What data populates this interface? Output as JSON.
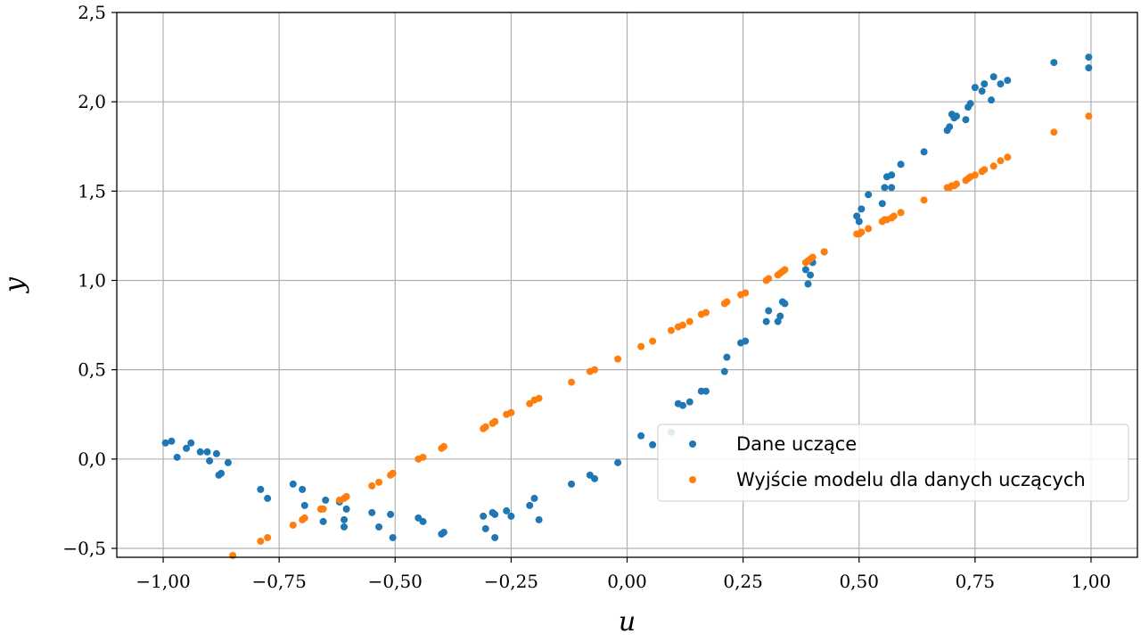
{
  "chart_data": {
    "type": "scatter",
    "title": "",
    "xlabel": "u",
    "ylabel": "y",
    "xlim": [
      -1.1,
      1.1
    ],
    "ylim": [
      -0.55,
      2.5
    ],
    "xticks": [
      -1.0,
      -0.75,
      -0.5,
      -0.25,
      0.0,
      0.25,
      0.5,
      0.75,
      1.0
    ],
    "xtick_labels": [
      "−1,00",
      "−0,75",
      "−0,50",
      "−0,25",
      "0,00",
      "0,25",
      "0,50",
      "0,75",
      "1,00"
    ],
    "yticks": [
      -0.5,
      0.0,
      0.5,
      1.0,
      1.5,
      2.0,
      2.5
    ],
    "ytick_labels": [
      "−0,5",
      "0,0",
      "0,5",
      "1,0",
      "1,5",
      "2,0",
      "2,5"
    ],
    "grid": true,
    "legend_position": "lower-right",
    "series": [
      {
        "name": "Dane uczące",
        "color": "#1f77b4",
        "points": [
          [
            -0.995,
            0.09
          ],
          [
            -0.982,
            0.1
          ],
          [
            -0.97,
            0.01
          ],
          [
            -0.95,
            0.06
          ],
          [
            -0.94,
            0.09
          ],
          [
            -0.92,
            0.04
          ],
          [
            -0.905,
            0.04
          ],
          [
            -0.9,
            -0.01
          ],
          [
            -0.885,
            0.03
          ],
          [
            -0.88,
            -0.09
          ],
          [
            -0.875,
            -0.08
          ],
          [
            -0.86,
            -0.02
          ],
          [
            -0.79,
            -0.17
          ],
          [
            -0.775,
            -0.22
          ],
          [
            -0.72,
            -0.14
          ],
          [
            -0.7,
            -0.17
          ],
          [
            -0.695,
            -0.26
          ],
          [
            -0.66,
            -0.28
          ],
          [
            -0.655,
            -0.35
          ],
          [
            -0.65,
            -0.23
          ],
          [
            -0.62,
            -0.24
          ],
          [
            -0.61,
            -0.38
          ],
          [
            -0.605,
            -0.28
          ],
          [
            -0.61,
            -0.34
          ],
          [
            -0.55,
            -0.3
          ],
          [
            -0.535,
            -0.38
          ],
          [
            -0.51,
            -0.31
          ],
          [
            -0.505,
            -0.44
          ],
          [
            -0.45,
            -0.33
          ],
          [
            -0.44,
            -0.35
          ],
          [
            -0.4,
            -0.42
          ],
          [
            -0.395,
            -0.41
          ],
          [
            -0.31,
            -0.32
          ],
          [
            -0.305,
            -0.39
          ],
          [
            -0.29,
            -0.3
          ],
          [
            -0.285,
            -0.31
          ],
          [
            -0.285,
            -0.44
          ],
          [
            -0.26,
            -0.29
          ],
          [
            -0.25,
            -0.32
          ],
          [
            -0.21,
            -0.26
          ],
          [
            -0.2,
            -0.22
          ],
          [
            -0.19,
            -0.34
          ],
          [
            -0.12,
            -0.14
          ],
          [
            -0.08,
            -0.09
          ],
          [
            -0.07,
            -0.11
          ],
          [
            -0.02,
            -0.02
          ],
          [
            0.03,
            0.13
          ],
          [
            0.055,
            0.08
          ],
          [
            0.095,
            0.15
          ],
          [
            0.11,
            0.31
          ],
          [
            0.12,
            0.3
          ],
          [
            0.135,
            0.32
          ],
          [
            0.16,
            0.38
          ],
          [
            0.17,
            0.38
          ],
          [
            0.21,
            0.49
          ],
          [
            0.215,
            0.57
          ],
          [
            0.245,
            0.65
          ],
          [
            0.255,
            0.66
          ],
          [
            0.3,
            0.77
          ],
          [
            0.305,
            0.83
          ],
          [
            0.325,
            0.77
          ],
          [
            0.33,
            0.8
          ],
          [
            0.335,
            0.88
          ],
          [
            0.34,
            0.87
          ],
          [
            0.385,
            1.06
          ],
          [
            0.39,
            0.98
          ],
          [
            0.395,
            1.03
          ],
          [
            0.4,
            1.1
          ],
          [
            0.425,
            1.16
          ],
          [
            0.495,
            1.36
          ],
          [
            0.5,
            1.33
          ],
          [
            0.505,
            1.4
          ],
          [
            0.52,
            1.48
          ],
          [
            0.55,
            1.43
          ],
          [
            0.555,
            1.52
          ],
          [
            0.56,
            1.58
          ],
          [
            0.57,
            1.59
          ],
          [
            0.57,
            1.52
          ],
          [
            0.59,
            1.65
          ],
          [
            0.64,
            1.72
          ],
          [
            0.69,
            1.84
          ],
          [
            0.695,
            1.86
          ],
          [
            0.7,
            1.93
          ],
          [
            0.705,
            1.91
          ],
          [
            0.71,
            1.92
          ],
          [
            0.73,
            1.9
          ],
          [
            0.735,
            1.97
          ],
          [
            0.74,
            1.99
          ],
          [
            0.75,
            2.08
          ],
          [
            0.765,
            2.06
          ],
          [
            0.77,
            2.1
          ],
          [
            0.785,
            2.01
          ],
          [
            0.79,
            2.14
          ],
          [
            0.805,
            2.1
          ],
          [
            0.82,
            2.12
          ],
          [
            0.92,
            2.22
          ],
          [
            0.995,
            2.25
          ],
          [
            0.995,
            2.19
          ]
        ]
      },
      {
        "name": "Wyjście modelu dla danych uczących",
        "color": "#ff7f0e",
        "points": [
          [
            -0.85,
            -0.54
          ],
          [
            -0.79,
            -0.46
          ],
          [
            -0.775,
            -0.44
          ],
          [
            -0.72,
            -0.37
          ],
          [
            -0.7,
            -0.34
          ],
          [
            -0.695,
            -0.33
          ],
          [
            -0.66,
            -0.28
          ],
          [
            -0.655,
            -0.28
          ],
          [
            -0.62,
            -0.23
          ],
          [
            -0.61,
            -0.22
          ],
          [
            -0.605,
            -0.21
          ],
          [
            -0.55,
            -0.15
          ],
          [
            -0.535,
            -0.13
          ],
          [
            -0.51,
            -0.09
          ],
          [
            -0.505,
            -0.08
          ],
          [
            -0.45,
            0.0
          ],
          [
            -0.44,
            0.01
          ],
          [
            -0.4,
            0.06
          ],
          [
            -0.395,
            0.07
          ],
          [
            -0.31,
            0.17
          ],
          [
            -0.305,
            0.18
          ],
          [
            -0.29,
            0.2
          ],
          [
            -0.285,
            0.21
          ],
          [
            -0.26,
            0.25
          ],
          [
            -0.25,
            0.26
          ],
          [
            -0.21,
            0.31
          ],
          [
            -0.2,
            0.33
          ],
          [
            -0.19,
            0.34
          ],
          [
            -0.12,
            0.43
          ],
          [
            -0.08,
            0.49
          ],
          [
            -0.07,
            0.5
          ],
          [
            -0.02,
            0.56
          ],
          [
            0.03,
            0.63
          ],
          [
            0.055,
            0.66
          ],
          [
            0.095,
            0.72
          ],
          [
            0.11,
            0.74
          ],
          [
            0.12,
            0.75
          ],
          [
            0.135,
            0.77
          ],
          [
            0.16,
            0.81
          ],
          [
            0.17,
            0.82
          ],
          [
            0.21,
            0.87
          ],
          [
            0.215,
            0.88
          ],
          [
            0.245,
            0.92
          ],
          [
            0.255,
            0.93
          ],
          [
            0.3,
            1.0
          ],
          [
            0.305,
            1.01
          ],
          [
            0.325,
            1.03
          ],
          [
            0.33,
            1.04
          ],
          [
            0.335,
            1.05
          ],
          [
            0.34,
            1.06
          ],
          [
            0.385,
            1.1
          ],
          [
            0.39,
            1.11
          ],
          [
            0.395,
            1.12
          ],
          [
            0.4,
            1.13
          ],
          [
            0.425,
            1.16
          ],
          [
            0.495,
            1.26
          ],
          [
            0.5,
            1.26
          ],
          [
            0.505,
            1.27
          ],
          [
            0.52,
            1.29
          ],
          [
            0.55,
            1.33
          ],
          [
            0.555,
            1.34
          ],
          [
            0.56,
            1.34
          ],
          [
            0.57,
            1.35
          ],
          [
            0.575,
            1.36
          ],
          [
            0.59,
            1.38
          ],
          [
            0.64,
            1.45
          ],
          [
            0.69,
            1.52
          ],
          [
            0.695,
            1.52
          ],
          [
            0.7,
            1.53
          ],
          [
            0.705,
            1.53
          ],
          [
            0.71,
            1.54
          ],
          [
            0.73,
            1.56
          ],
          [
            0.735,
            1.57
          ],
          [
            0.74,
            1.58
          ],
          [
            0.75,
            1.59
          ],
          [
            0.765,
            1.61
          ],
          [
            0.77,
            1.62
          ],
          [
            0.79,
            1.64
          ],
          [
            0.805,
            1.67
          ],
          [
            0.82,
            1.69
          ],
          [
            0.92,
            1.83
          ],
          [
            0.995,
            1.92
          ]
        ]
      }
    ]
  }
}
